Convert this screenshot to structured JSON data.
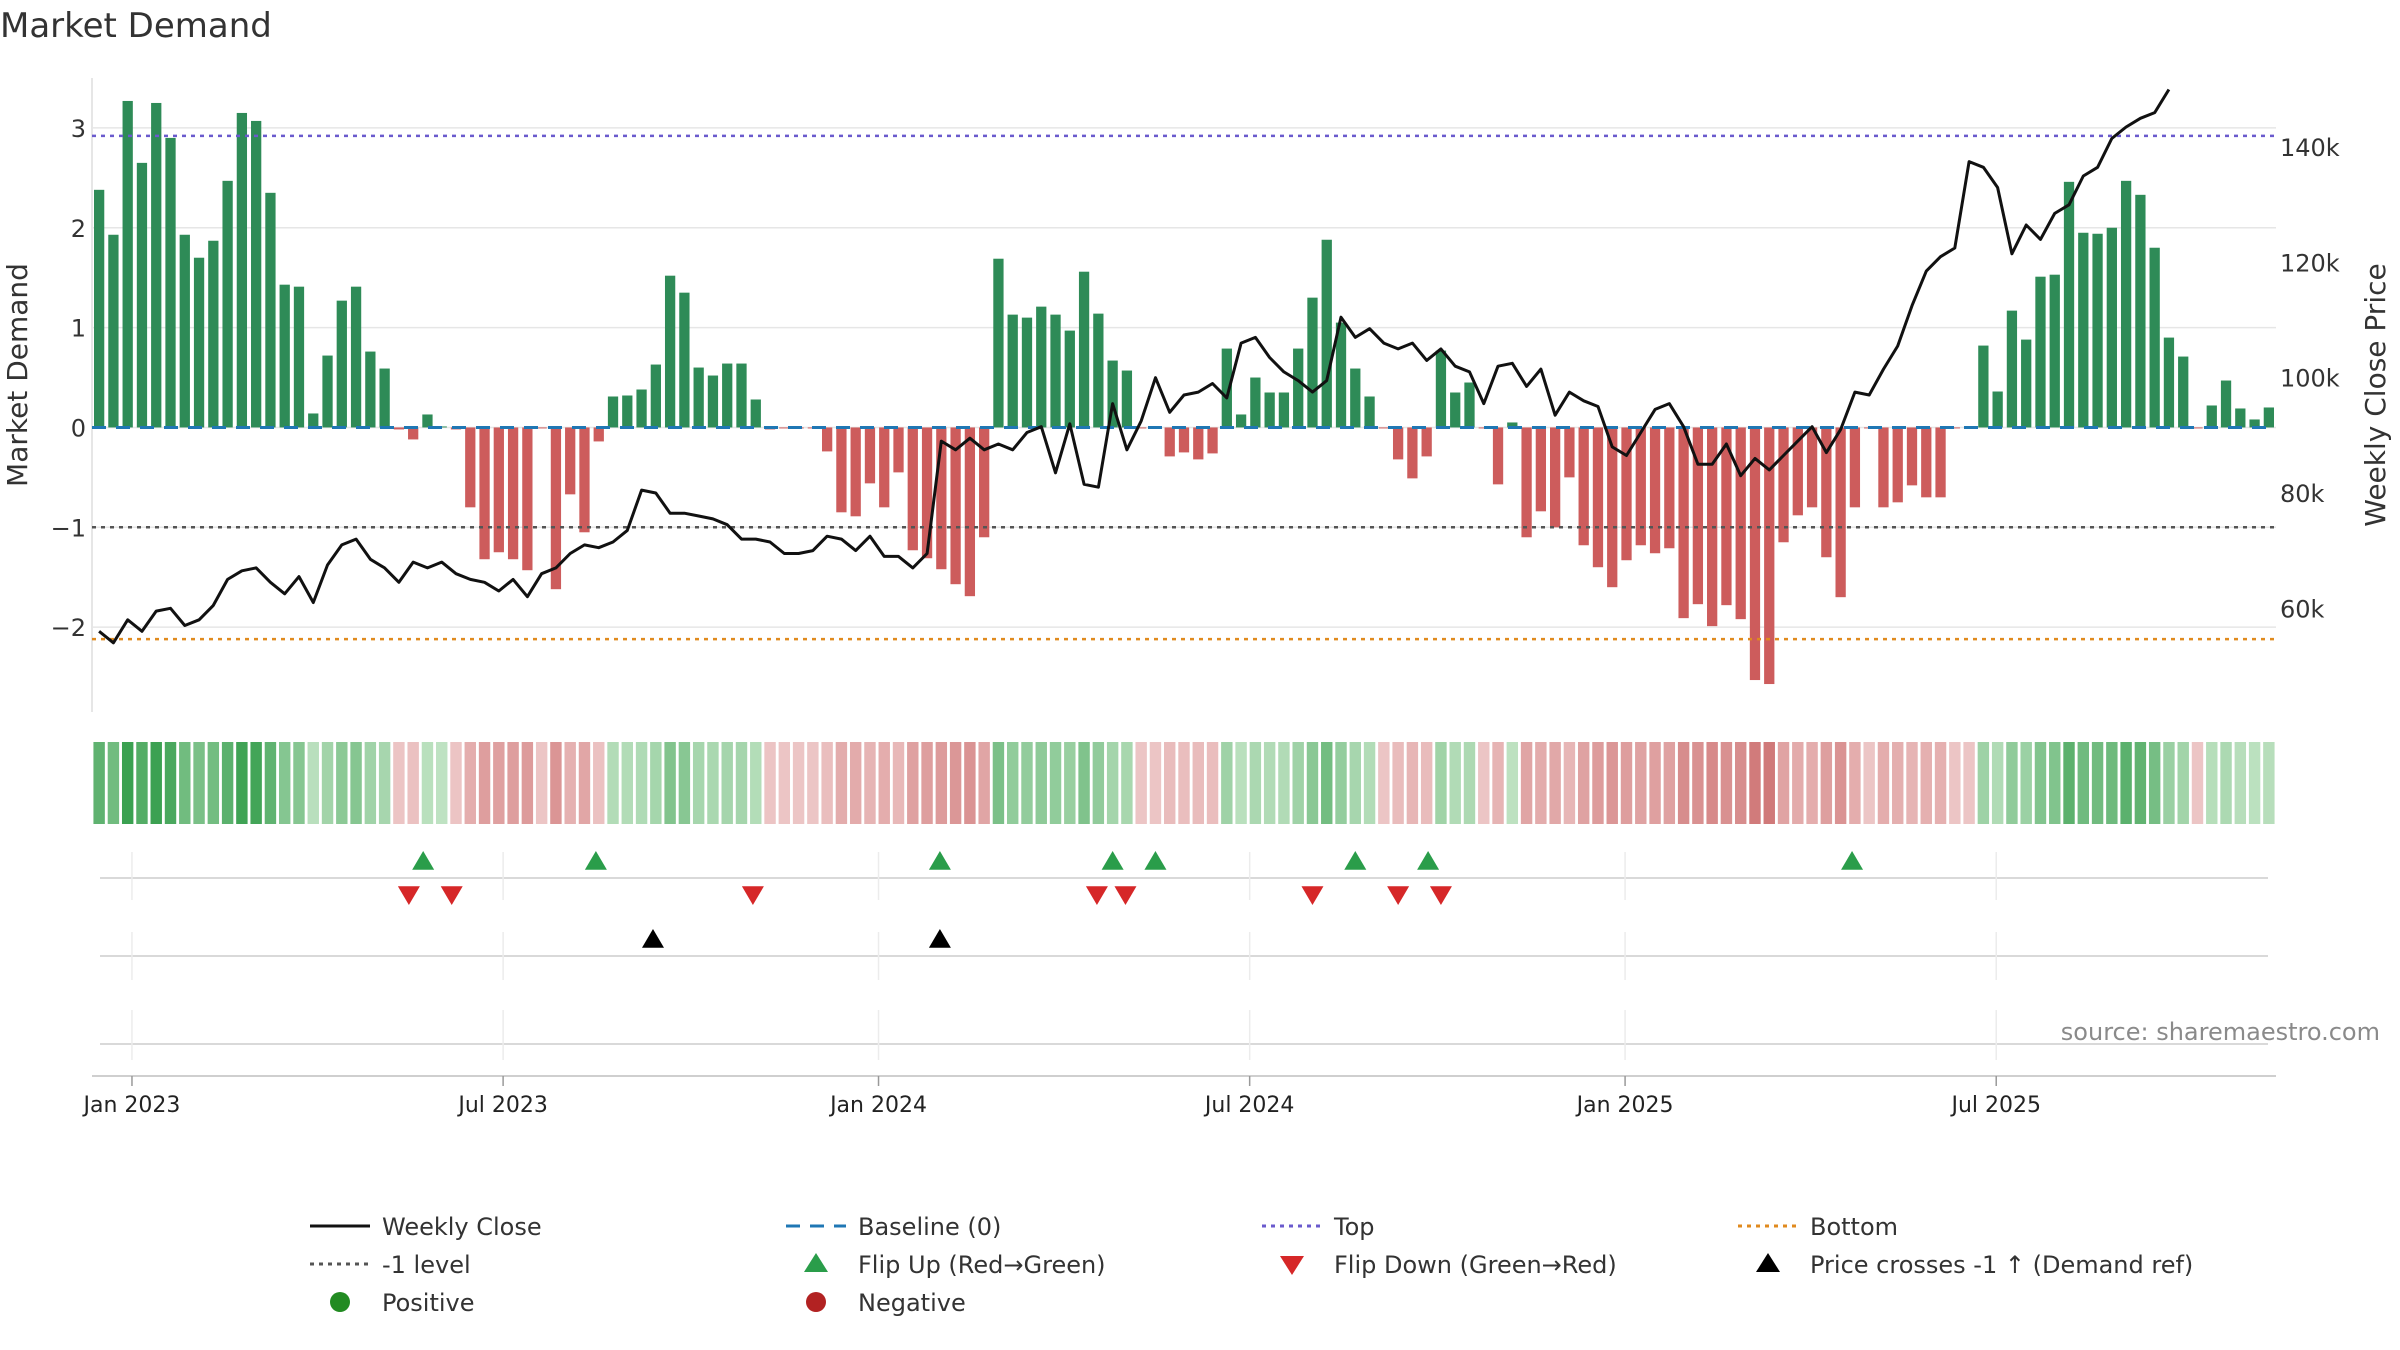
{
  "chart_data": {
    "type": "bar",
    "title": "Market Demand",
    "source": "source: sharemaestro.com",
    "left_axis": {
      "label": "Market Demand",
      "ylim": [
        -2.85,
        3.5
      ],
      "ticks": [
        3,
        2,
        1,
        0,
        -1,
        -2
      ],
      "tick_labels": [
        "3",
        "2",
        "1",
        "0",
        "−1",
        "−2"
      ]
    },
    "right_axis": {
      "label": "Weekly Close Price",
      "ylim": [
        42000,
        152000
      ],
      "ticks": [
        140000,
        120000,
        100000,
        80000,
        60000
      ],
      "tick_labels": [
        "140k",
        "120k",
        "100k",
        "80k",
        "60k"
      ]
    },
    "x_ticks": [
      {
        "label": "Jan 2023",
        "week": 2.3
      },
      {
        "label": "Jul 2023",
        "week": 28.3
      },
      {
        "label": "Jan 2024",
        "week": 54.6
      },
      {
        "label": "Jul 2024",
        "week": 80.6
      },
      {
        "label": "Jan 2025",
        "week": 106.9
      },
      {
        "label": "Jul 2025",
        "week": 132.9
      }
    ],
    "reference_lines": {
      "top": 2.92,
      "bottom": -2.12,
      "minus_one": -1,
      "baseline": 0
    },
    "demand": [
      2.38,
      1.93,
      3.27,
      2.65,
      3.25,
      2.9,
      1.93,
      1.7,
      1.87,
      2.47,
      3.15,
      3.07,
      2.35,
      1.43,
      1.41,
      0.14,
      0.72,
      1.27,
      1.41,
      0.76,
      0.59,
      -0.02,
      -0.12,
      0.13,
      0.01,
      -0.02,
      -0.8,
      -1.32,
      -1.25,
      -1.32,
      -1.43,
      -0.01,
      -1.62,
      -0.67,
      -1.05,
      -0.14,
      0.31,
      0.32,
      0.38,
      0.63,
      1.52,
      1.35,
      0.6,
      0.52,
      0.64,
      0.64,
      0.28,
      -0.02,
      -0.01,
      -0.01,
      -0.01,
      -0.24,
      -0.85,
      -0.89,
      -0.56,
      -0.8,
      -0.45,
      -1.23,
      -1.31,
      -1.42,
      -1.57,
      -1.69,
      -1.1,
      1.69,
      1.13,
      1.1,
      1.21,
      1.13,
      0.97,
      1.56,
      1.14,
      0.67,
      0.57,
      -0.01,
      -0.01,
      -0.29,
      -0.25,
      -0.32,
      -0.26,
      0.79,
      0.13,
      0.5,
      0.35,
      0.35,
      0.79,
      1.3,
      1.88,
      1.05,
      0.59,
      0.31,
      -0.01,
      -0.32,
      -0.51,
      -0.29,
      0.77,
      0.35,
      0.45,
      -0.01,
      -0.57,
      0.05,
      -1.1,
      -0.84,
      -1.0,
      -0.5,
      -1.18,
      -1.4,
      -1.6,
      -1.33,
      -1.18,
      -1.26,
      -1.21,
      -1.91,
      -1.77,
      -1.99,
      -1.78,
      -1.92,
      -2.53,
      -2.57,
      -1.15,
      -0.88,
      -0.8,
      -1.3,
      -1.7,
      -0.8,
      -0.01,
      -0.8,
      -0.75,
      -0.58,
      -0.7,
      -0.7,
      -0.01,
      -0.01,
      0.82,
      0.36,
      1.17,
      0.88,
      1.51,
      1.53,
      2.46,
      1.95,
      1.94,
      2.0,
      2.47,
      2.33,
      1.8,
      0.9,
      0.71,
      -0.01,
      0.22,
      0.47,
      0.19,
      0.08,
      0.2
    ],
    "price": [
      56000,
      54000,
      58000,
      56000,
      59500,
      60000,
      57000,
      58000,
      60500,
      65000,
      66500,
      67000,
      64500,
      62500,
      65500,
      61000,
      67500,
      71000,
      72000,
      68500,
      67000,
      64500,
      68000,
      67000,
      68000,
      66000,
      65000,
      64500,
      63000,
      65000,
      62000,
      66000,
      67000,
      69500,
      71000,
      70500,
      71500,
      73500,
      80500,
      80000,
      76500,
      76500,
      76000,
      75500,
      74500,
      72000,
      72000,
      71500,
      69500,
      69500,
      70000,
      72500,
      72000,
      70000,
      72500,
      69000,
      69000,
      67000,
      69500,
      89000,
      87500,
      89500,
      87500,
      88500,
      87500,
      90500,
      91500,
      83500,
      92000,
      81500,
      81000,
      95500,
      87500,
      92500,
      100000,
      94000,
      97000,
      97500,
      99000,
      96500,
      106000,
      107000,
      103500,
      101000,
      99500,
      97500,
      99500,
      110500,
      107000,
      108500,
      106000,
      105000,
      106000,
      103000,
      105000,
      102000,
      101000,
      95500,
      102000,
      102500,
      98500,
      101500,
      93500,
      97500,
      96000,
      95000,
      88000,
      86500,
      90500,
      94500,
      95500,
      91500,
      85000,
      85000,
      88500,
      83000,
      86000,
      84000,
      86500,
      89000,
      91500,
      87000,
      91000,
      97500,
      97000,
      101500,
      105500,
      112500,
      118500,
      121000,
      122500,
      137500,
      136500,
      133000,
      121500,
      126500,
      124000,
      128500,
      130000,
      135000,
      136500,
      141500,
      143500,
      145000,
      146000,
      150000
    ],
    "flip_up_weeks": [
      22.7,
      34.8,
      58.9,
      71.0,
      74.0,
      88.0,
      93.1,
      122.8
    ],
    "flip_down_weeks": [
      21.7,
      24.7,
      45.8,
      69.9,
      71.9,
      85.0,
      91.0,
      94.0
    ],
    "price_cross_weeks": [
      38.8,
      58.9
    ],
    "legend": [
      {
        "label": "Weekly Close",
        "marker": "line",
        "color": "#111111"
      },
      {
        "label": "Baseline (0)",
        "marker": "dash",
        "color": "#1f77b4"
      },
      {
        "label": "Top",
        "marker": "dots",
        "color": "#6a5acd"
      },
      {
        "label": "Bottom",
        "marker": "dots",
        "color": "#e08a1e"
      },
      {
        "label": "-1 level",
        "marker": "dots",
        "color": "#555555"
      },
      {
        "label": "Flip Up (Red→Green)",
        "marker": "tri-up",
        "color": "#2a9d4a"
      },
      {
        "label": "Flip Down (Green→Red)",
        "marker": "tri-down",
        "color": "#d62728"
      },
      {
        "label": "Price crosses -1 ↑ (Demand ref)",
        "marker": "tri-up",
        "color": "#000000"
      },
      {
        "label": "Positive",
        "marker": "circle",
        "color": "#228b22"
      },
      {
        "label": "Negative",
        "marker": "circle",
        "color": "#b22222"
      }
    ],
    "colors": {
      "positive_bar": "#2e8b57",
      "negative_bar": "#cd5c5c",
      "price_line": "#111111",
      "grid": "#e6e6e6"
    }
  }
}
